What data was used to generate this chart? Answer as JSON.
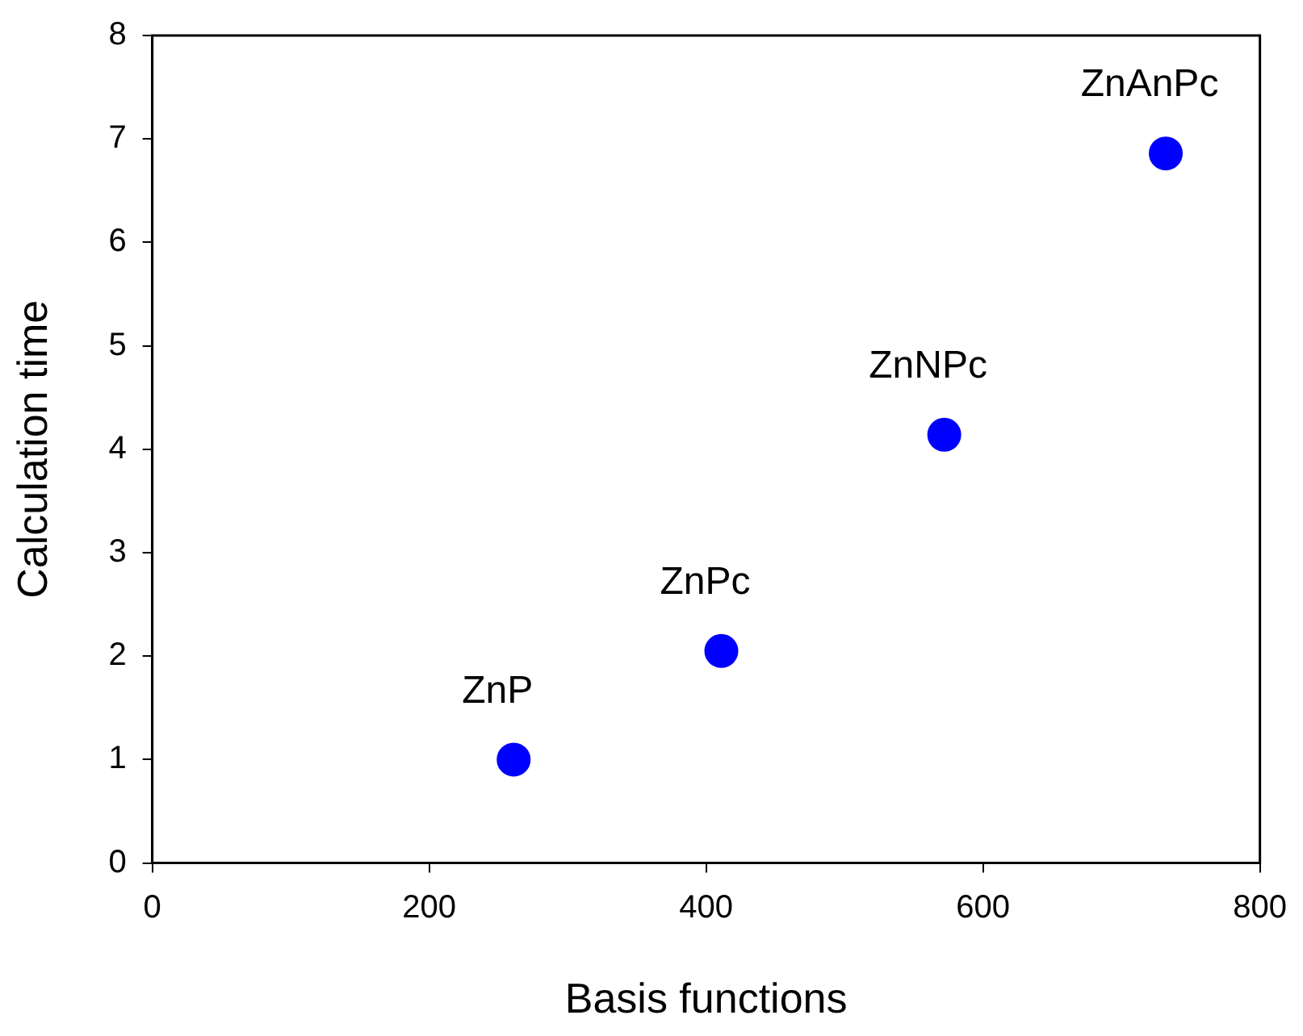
{
  "chart_data": {
    "type": "scatter",
    "xlabel": "Basis functions",
    "ylabel": "Calculation time",
    "x": [
      261,
      411,
      572,
      732
    ],
    "series": [
      {
        "color": "#0000ff",
        "values": [
          1.0,
          2.05,
          4.14,
          6.86
        ]
      }
    ],
    "xlim": [
      0,
      800
    ],
    "xticks": [
      0,
      200,
      400,
      600,
      800
    ],
    "ylim": [
      0,
      8
    ],
    "yticks": [
      0,
      1,
      2,
      3,
      4,
      5,
      6,
      7,
      8
    ],
    "grid": false,
    "legend": false,
    "marker": "circle",
    "annotations": [
      {
        "text": "ZnP",
        "x": 261,
        "y": 1.0
      },
      {
        "text": "ZnPc",
        "x": 411,
        "y": 2.05
      },
      {
        "text": "ZnNPc",
        "x": 572,
        "y": 4.14
      },
      {
        "text": "ZnAnPc",
        "x": 732,
        "y": 6.86
      }
    ]
  }
}
